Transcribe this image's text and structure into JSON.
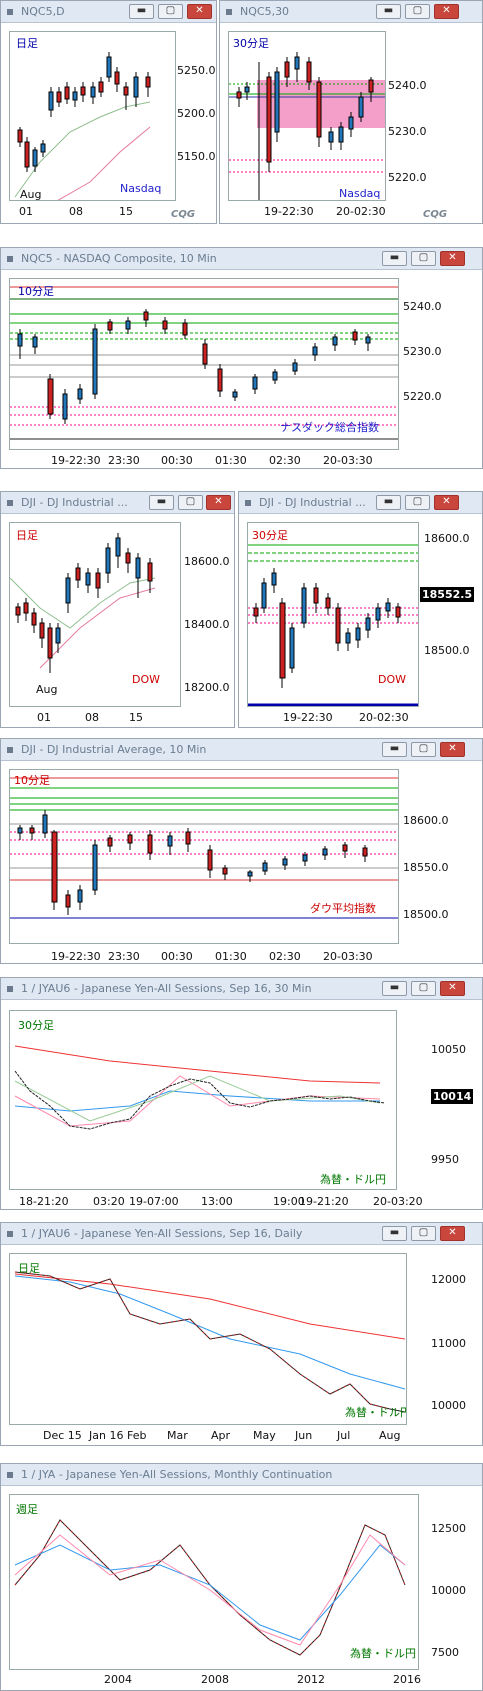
{
  "windows": [
    {
      "title": "NQC5,D",
      "tf": "日足",
      "label": "Nasdaq",
      "yticks": [
        "5250.0",
        "5200.0",
        "5150.0"
      ],
      "xticks": [
        "Aug",
        "01",
        "08",
        "15"
      ],
      "cqg": "CQG"
    },
    {
      "title": "NQC5,30",
      "tf": "30分足",
      "label": "Nasdaq",
      "yticks": [
        "5240.0",
        "5230.0",
        "5220.0"
      ],
      "xticks": [
        "19-22:30",
        "20-02:30"
      ],
      "cqg": "CQG"
    },
    {
      "title": "NQC5 - NASDAQ Composite, 10 Min",
      "tf": "10分足",
      "label": "ナスダック総合指数",
      "yticks": [
        "5240.0",
        "5230.0",
        "5220.0"
      ],
      "xticks": [
        "19-22:30",
        "23:30",
        "00:30",
        "01:30",
        "02:30",
        "20-03:30"
      ]
    },
    {
      "title": "DJI - DJ Industrial ...",
      "tf": "日足",
      "label": "DOW",
      "yticks": [
        "18600.0",
        "18400.0",
        "18200.0"
      ],
      "xticks": [
        "Aug",
        "01",
        "08",
        "15"
      ]
    },
    {
      "title": "DJI - DJ Industrial ...",
      "tf": "30分足",
      "label": "DOW",
      "yticks": [
        "18600.0",
        "18500.0"
      ],
      "price": "18552.5",
      "xticks": [
        "19-22:30",
        "20-02:30"
      ]
    },
    {
      "title": "DJI - DJ Industrial Average, 10 Min",
      "tf": "10分足",
      "label": "ダウ平均指数",
      "yticks": [
        "18600.0",
        "18550.0",
        "18500.0"
      ],
      "xticks": [
        "19-22:30",
        "23:30",
        "00:30",
        "01:30",
        "02:30",
        "20-03:30"
      ]
    },
    {
      "title": "1 / JYAU6 - Japanese Yen-All Sessions, Sep 16, 30 Min",
      "tf": "30分足",
      "label": "為替・ドル円",
      "yticks": [
        "10050",
        "9950"
      ],
      "price": "10014",
      "xticks": [
        "18-21:20",
        "03:20",
        "19-07:00",
        "13:00",
        "19:00",
        "19-21:20",
        "20-03:20"
      ]
    },
    {
      "title": "1 / JYAU6 - Japanese Yen-All Sessions, Sep 16, Daily",
      "tf": "日足",
      "label": "為替・ドル円",
      "yticks": [
        "12000",
        "11000",
        "10000"
      ],
      "xticks": [
        "Dec 15",
        "Jan 16",
        "Feb",
        "Mar",
        "Apr",
        "May",
        "Jun",
        "Jul",
        "Aug"
      ]
    },
    {
      "title": "1 / JYA - Japanese Yen-All Sessions, Monthly Continuation",
      "tf": "週足",
      "label": "為替・ドル円",
      "yticks": [
        "12500",
        "10000",
        "7500"
      ],
      "xticks": [
        "2004",
        "2008",
        "2012",
        "2016"
      ]
    }
  ],
  "buttons": {
    "min": "▬",
    "max": "▢",
    "close": "✕"
  }
}
